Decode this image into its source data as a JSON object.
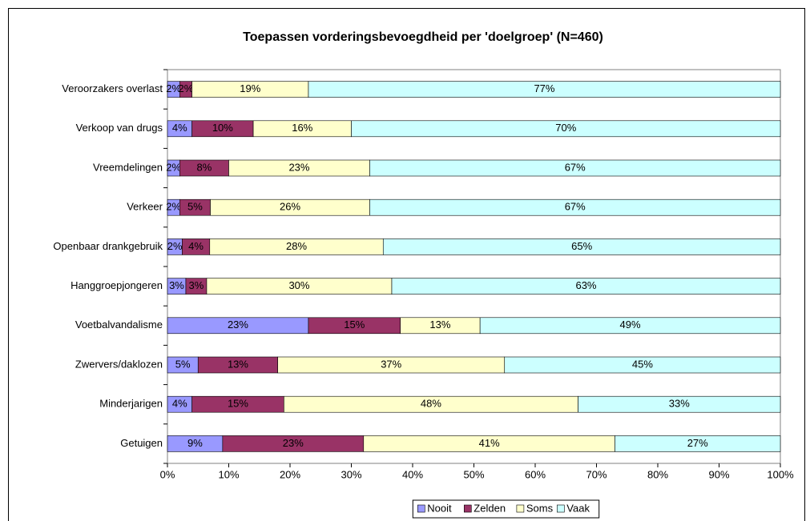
{
  "chart_data": {
    "type": "stacked-barh",
    "title": "Toepassen vorderingsbevoegdheid per 'doelgroep' (N=460)",
    "categories": [
      "Veroorzakers overlast",
      "Verkoop van drugs",
      "Vreemdelingen",
      "Verkeer",
      "Openbaar drankgebruik",
      "Hanggroepjongeren",
      "Voetbalvandalisme",
      "Zwervers/daklozen",
      "Minderjarigen",
      "Getuigen"
    ],
    "series": [
      {
        "name": "Nooit",
        "color": "#9999ff",
        "values": [
          2,
          4,
          2,
          2,
          2.4,
          3.0,
          23,
          5,
          4,
          9
        ],
        "value_labels": [
          "2%",
          "4%",
          "2%",
          "2%",
          "2%",
          "3%",
          "23%",
          "5%",
          "4%",
          "9%"
        ]
      },
      {
        "name": "Zelden",
        "color": "#993366",
        "values": [
          2,
          10,
          8,
          5,
          4.5,
          3.4,
          15,
          13,
          15,
          23
        ],
        "value_labels": [
          "2%",
          "10%",
          "8%",
          "5%",
          "4%",
          "3%",
          "15%",
          "13%",
          "15%",
          "23%"
        ]
      },
      {
        "name": "Soms",
        "color": "#ffffcc",
        "values": [
          19,
          16,
          23,
          26,
          28.3,
          30.2,
          13,
          37,
          48,
          41
        ],
        "value_labels": [
          "19%",
          "16%",
          "23%",
          "26%",
          "28%",
          "30%",
          "13%",
          "37%",
          "48%",
          "41%"
        ]
      },
      {
        "name": "Vaak",
        "color": "#ccffff",
        "values": [
          77,
          70,
          67,
          67,
          64.8,
          63.4,
          49,
          45,
          33,
          27
        ],
        "value_labels": [
          "77%",
          "70%",
          "67%",
          "67%",
          "65%",
          "63%",
          "49%",
          "45%",
          "33%",
          "27%"
        ]
      }
    ],
    "xlim": [
      0,
      100
    ],
    "xticks": [
      {
        "value": 0,
        "label": "0%"
      },
      {
        "value": 10,
        "label": "10%"
      },
      {
        "value": 20,
        "label": "20%"
      },
      {
        "value": 30,
        "label": "30%"
      },
      {
        "value": 40,
        "label": "40%"
      },
      {
        "value": 50,
        "label": "50%"
      },
      {
        "value": 60,
        "label": "60%"
      },
      {
        "value": 70,
        "label": "70%"
      },
      {
        "value": 80,
        "label": "80%"
      },
      {
        "value": 90,
        "label": "90%"
      },
      {
        "value": 100,
        "label": "100%"
      }
    ],
    "legend": "bottom"
  }
}
